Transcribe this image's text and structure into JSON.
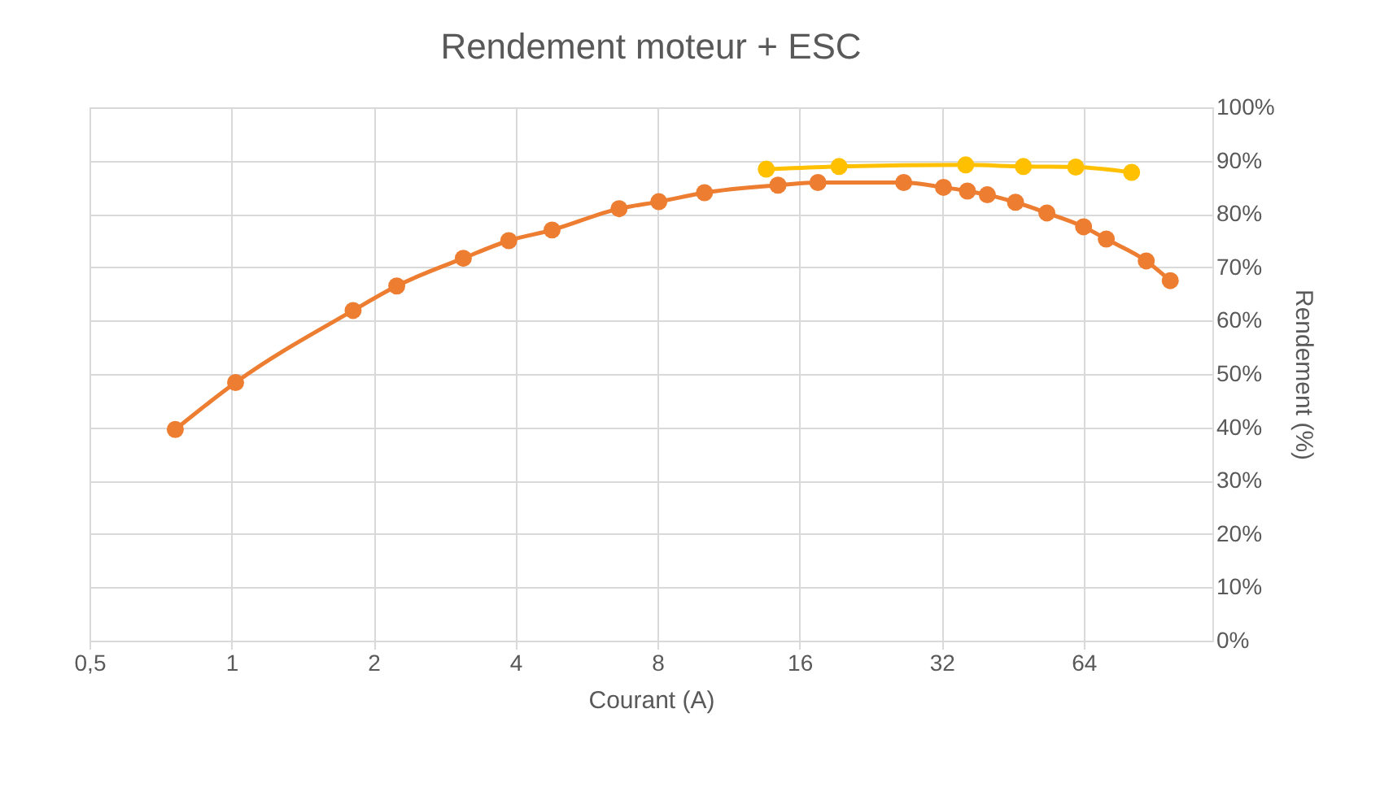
{
  "chart_data": {
    "type": "line",
    "title": "Rendement moteur + ESC",
    "xlabel": "Courant (A)",
    "ylabel": "Rendement (%)",
    "log": "x",
    "xlim": [
      0.5,
      120
    ],
    "xticks": [
      {
        "value": 0.5,
        "label": "0,5"
      },
      1,
      2,
      4,
      8,
      16,
      32,
      64
    ],
    "ylim": [
      0,
      100
    ],
    "yticks": [
      {
        "value": 0,
        "label": "0%"
      },
      {
        "value": 10,
        "label": "10%"
      },
      {
        "value": 20,
        "label": "20%"
      },
      {
        "value": 30,
        "label": "30%"
      },
      {
        "value": 40,
        "label": "40%"
      },
      {
        "value": 50,
        "label": "50%"
      },
      {
        "value": 60,
        "label": "60%"
      },
      {
        "value": 70,
        "label": "70%"
      },
      {
        "value": 80,
        "label": "80%"
      },
      {
        "value": 90,
        "label": "90%"
      },
      {
        "value": 100,
        "label": "100%"
      }
    ],
    "grid": true,
    "marker": "circle",
    "line_style": "solid",
    "series": [
      {
        "color": "#ed7d31",
        "x": [
          0.76,
          1.02,
          1.81,
          2.24,
          3.1,
          3.87,
          4.78,
          6.63,
          8.05,
          10.06,
          14.4,
          17.5,
          26.6,
          32.3,
          36.3,
          40.0,
          45.9,
          53.5,
          64,
          71.5,
          86.9,
          97.7
        ],
        "values": [
          39.6,
          48.4,
          61.9,
          66.5,
          71.7,
          75.0,
          77.0,
          81.0,
          82.3,
          84.0,
          85.4,
          85.9,
          85.9,
          85.0,
          84.3,
          83.6,
          82.2,
          80.2,
          77.6,
          75.3,
          71.2,
          67.5
        ]
      },
      {
        "color": "#ffc000",
        "x": [
          13.6,
          19.4,
          36.0,
          47.7,
          61.6,
          80.9
        ],
        "values": [
          88.4,
          88.9,
          89.2,
          88.9,
          88.8,
          87.8
        ]
      }
    ]
  }
}
